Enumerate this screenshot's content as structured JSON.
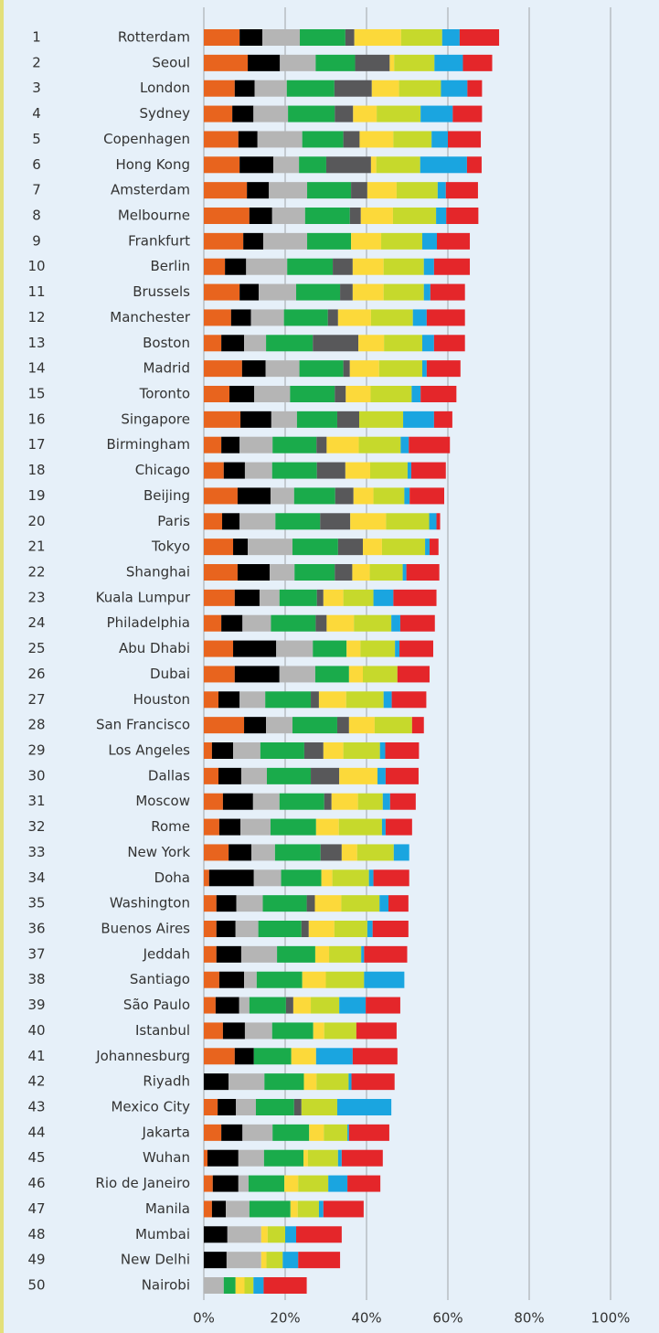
{
  "chart_data": {
    "type": "bar",
    "orientation": "horizontal",
    "stacked": true,
    "grid": true,
    "ranks": [
      1,
      2,
      3,
      4,
      5,
      6,
      7,
      8,
      9,
      10,
      11,
      12,
      13,
      14,
      15,
      16,
      17,
      18,
      19,
      20,
      21,
      22,
      23,
      24,
      25,
      26,
      27,
      28,
      29,
      30,
      31,
      32,
      33,
      34,
      35,
      36,
      37,
      38,
      39,
      40,
      41,
      42,
      43,
      44,
      45,
      46,
      47,
      48,
      49,
      50
    ],
    "categories": [
      "Rotterdam",
      "Seoul",
      "London",
      "Sydney",
      "Copenhagen",
      "Hong Kong",
      "Amsterdam",
      "Melbourne",
      "Frankfurt",
      "Berlin",
      "Brussels",
      "Manchester",
      "Boston",
      "Madrid",
      "Toronto",
      "Singapore",
      "Birmingham",
      "Chicago",
      "Beijing",
      "Paris",
      "Tokyo",
      "Shanghai",
      "Kuala Lumpur",
      "Philadelphia",
      "Abu Dhabi",
      "Dubai",
      "Houston",
      "San Francisco",
      "Los Angeles",
      "Dallas",
      "Moscow",
      "Rome",
      "New York",
      "Doha",
      "Washington",
      "Buenos Aires",
      "Jeddah",
      "Santiago",
      "São Paulo",
      "Istanbul",
      "Johannesburg",
      "Riyadh",
      "Mexico City",
      "Jakarta",
      "Wuhan",
      "Rio de Janeiro",
      "Manila",
      "Mumbai",
      "New Delhi",
      "Nairobi"
    ],
    "series": [
      {
        "color": "#e8641e",
        "values": [
          8.8,
          10.8,
          7.6,
          7.0,
          8.5,
          8.8,
          10.6,
          11.2,
          9.7,
          5.2,
          8.8,
          6.7,
          4.3,
          9.4,
          6.3,
          9.0,
          4.3,
          4.9,
          8.3,
          4.5,
          7.2,
          8.3,
          7.6,
          4.3,
          7.2,
          7.6,
          3.6,
          9.9,
          2.0,
          3.6,
          4.7,
          3.8,
          6.1,
          1.3,
          3.1,
          3.1,
          3.1,
          3.8,
          2.9,
          4.7,
          7.6,
          0,
          3.4,
          4.3,
          0.9,
          2.2,
          2.0,
          0,
          0,
          0
        ]
      },
      {
        "color": "#000000",
        "values": [
          5.6,
          7.9,
          4.9,
          5.2,
          4.7,
          8.3,
          5.4,
          5.6,
          4.9,
          5.2,
          4.7,
          4.9,
          5.6,
          5.8,
          6.1,
          7.6,
          4.5,
          5.2,
          8.1,
          4.3,
          3.6,
          7.9,
          6.1,
          5.2,
          10.6,
          11.0,
          5.2,
          5.4,
          5.2,
          5.6,
          7.4,
          5.2,
          5.6,
          11.0,
          4.9,
          4.7,
          6.1,
          6.1,
          5.8,
          5.4,
          4.7,
          6.1,
          4.5,
          5.2,
          7.6,
          6.3,
          3.4,
          5.8,
          5.6,
          0
        ]
      },
      {
        "color": "#b5b5b5",
        "values": [
          9.2,
          8.8,
          7.9,
          8.5,
          11.0,
          6.3,
          9.4,
          8.1,
          10.8,
          10.1,
          9.2,
          8.1,
          5.4,
          8.3,
          8.8,
          6.3,
          8.1,
          6.7,
          5.8,
          8.8,
          11.0,
          6.1,
          4.9,
          7.0,
          9.0,
          8.8,
          6.3,
          6.5,
          6.7,
          6.3,
          6.5,
          7.4,
          5.8,
          6.7,
          6.5,
          5.6,
          8.8,
          3.1,
          2.5,
          6.7,
          0,
          8.8,
          4.9,
          7.4,
          6.3,
          2.5,
          5.8,
          8.3,
          8.5,
          4.9
        ]
      },
      {
        "color": "#1aab4b",
        "values": [
          11.2,
          9.7,
          11.7,
          11.5,
          10.1,
          6.7,
          10.8,
          11.0,
          10.8,
          11.2,
          10.8,
          10.8,
          11.5,
          10.8,
          11.0,
          9.9,
          10.8,
          11.0,
          10.1,
          11.0,
          11.2,
          9.9,
          9.2,
          11.0,
          8.3,
          8.3,
          11.2,
          11.0,
          10.8,
          10.8,
          11.0,
          11.2,
          11.2,
          9.9,
          10.8,
          10.6,
          9.4,
          11.2,
          9.0,
          10.1,
          9.2,
          9.7,
          9.4,
          9.0,
          9.7,
          8.8,
          10.1,
          0,
          0,
          2.9
        ]
      },
      {
        "color": "#58585a",
        "values": [
          2.2,
          8.5,
          9.2,
          4.5,
          4.0,
          11.0,
          4.0,
          2.7,
          0,
          4.9,
          3.1,
          2.5,
          11.2,
          1.6,
          2.7,
          5.4,
          2.5,
          7.0,
          4.5,
          7.4,
          6.1,
          4.3,
          1.6,
          2.7,
          0,
          0,
          2.0,
          2.9,
          4.7,
          7.0,
          1.8,
          0,
          5.2,
          0,
          2.0,
          1.8,
          0,
          0,
          1.8,
          0,
          0,
          0,
          1.8,
          0,
          0,
          0,
          0,
          0,
          0,
          0
        ]
      },
      {
        "color": "#fcd93a",
        "values": [
          11.5,
          1.1,
          6.7,
          5.8,
          8.3,
          1.3,
          7.2,
          7.9,
          7.4,
          7.6,
          7.6,
          8.1,
          6.3,
          7.2,
          6.1,
          0,
          7.9,
          6.1,
          4.9,
          8.8,
          4.7,
          4.3,
          4.9,
          6.7,
          3.4,
          3.4,
          6.7,
          6.3,
          4.9,
          9.4,
          6.5,
          5.6,
          3.8,
          2.7,
          6.5,
          6.3,
          3.4,
          5.8,
          4.3,
          2.7,
          6.1,
          3.1,
          0,
          3.6,
          1.1,
          3.4,
          1.8,
          1.6,
          1.3,
          2.2
        ]
      },
      {
        "color": "#c6d92c",
        "values": [
          10.1,
          9.9,
          10.3,
          10.8,
          9.4,
          10.8,
          10.1,
          10.6,
          10.1,
          9.9,
          9.9,
          10.3,
          9.4,
          10.6,
          10.1,
          10.8,
          10.3,
          9.2,
          7.6,
          10.6,
          10.6,
          8.1,
          7.4,
          9.2,
          8.5,
          8.5,
          9.2,
          9.2,
          9.0,
          0,
          6.1,
          10.6,
          9.0,
          9.0,
          9.4,
          8.1,
          7.9,
          9.4,
          7.0,
          7.9,
          0,
          7.9,
          8.8,
          5.8,
          7.4,
          7.4,
          5.2,
          4.3,
          4.0,
          2.2
        ]
      },
      {
        "color": "#1aa5e0",
        "values": [
          4.3,
          7.0,
          6.5,
          7.9,
          4.0,
          11.5,
          2.0,
          2.5,
          3.6,
          2.5,
          1.6,
          3.4,
          2.9,
          1.1,
          2.2,
          7.6,
          2.0,
          0.9,
          1.3,
          1.8,
          1.1,
          0.9,
          4.9,
          2.2,
          1.1,
          0,
          2.0,
          0,
          1.3,
          2.0,
          1.8,
          0.9,
          3.8,
          1.1,
          2.2,
          1.3,
          0.7,
          9.9,
          6.5,
          0,
          9.0,
          0.7,
          13.3,
          0.4,
          0.9,
          4.7,
          1.1,
          2.7,
          3.8,
          2.5
        ]
      },
      {
        "color": "#e4262a",
        "values": [
          9.7,
          7.2,
          3.6,
          7.2,
          8.1,
          3.6,
          7.9,
          7.9,
          8.1,
          8.8,
          8.5,
          9.4,
          7.6,
          8.3,
          8.8,
          4.5,
          10.1,
          8.5,
          8.5,
          0.9,
          2.2,
          8.1,
          10.6,
          8.5,
          8.3,
          7.9,
          8.5,
          2.9,
          8.3,
          8.1,
          6.3,
          6.5,
          0,
          8.8,
          4.9,
          8.8,
          10.6,
          0,
          8.5,
          9.9,
          11.0,
          10.6,
          0,
          9.9,
          10.1,
          8.1,
          9.9,
          11.2,
          10.3,
          10.6
        ]
      }
    ],
    "xlim": [
      0,
      100
    ],
    "xticks": [
      {
        "value": 0,
        "label": "0%"
      },
      {
        "value": 20,
        "label": "20%"
      },
      {
        "value": 40,
        "label": "40%"
      },
      {
        "value": 60,
        "label": "60%"
      },
      {
        "value": 80,
        "label": "80%"
      },
      {
        "value": 100,
        "label": "100%"
      }
    ]
  }
}
